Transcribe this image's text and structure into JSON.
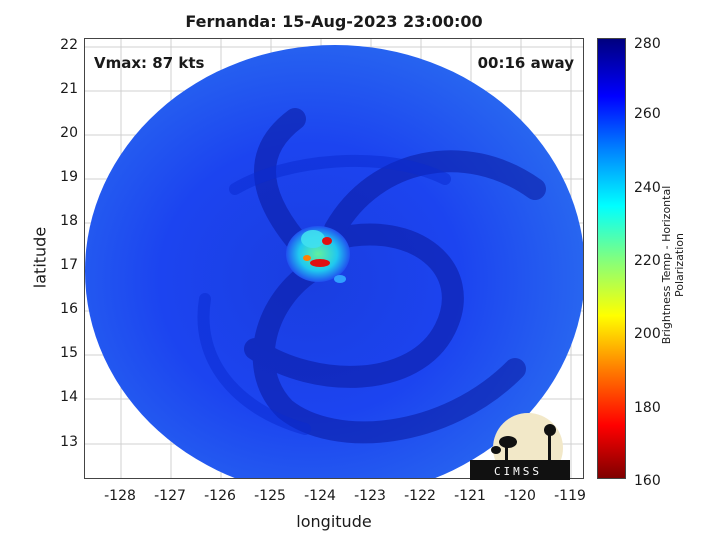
{
  "title": "Fernanda: 15-Aug-2023 23:00:00",
  "annotations": {
    "vmax": "Vmax: 87 kts",
    "time_away": "00:16 away"
  },
  "xlabel": "longitude",
  "ylabel": "latitude",
  "x_ticks": [
    "-128",
    "-127",
    "-126",
    "-125",
    "-124",
    "-123",
    "-122",
    "-121",
    "-120",
    "-119"
  ],
  "y_ticks": [
    "22",
    "21",
    "20",
    "19",
    "18",
    "17",
    "16",
    "15",
    "14",
    "13"
  ],
  "colorbar": {
    "label": "Brightness Temp - Horizontal Polarization",
    "ticks": [
      "280",
      "260",
      "240",
      "220",
      "200",
      "180",
      "160"
    ]
  },
  "logo_text": "CIMSS",
  "colors": {
    "deep_blue": "#0a1aa0",
    "mid_blue": "#1540e8",
    "cyan": "#20c8e8",
    "red": "#e01010"
  }
}
